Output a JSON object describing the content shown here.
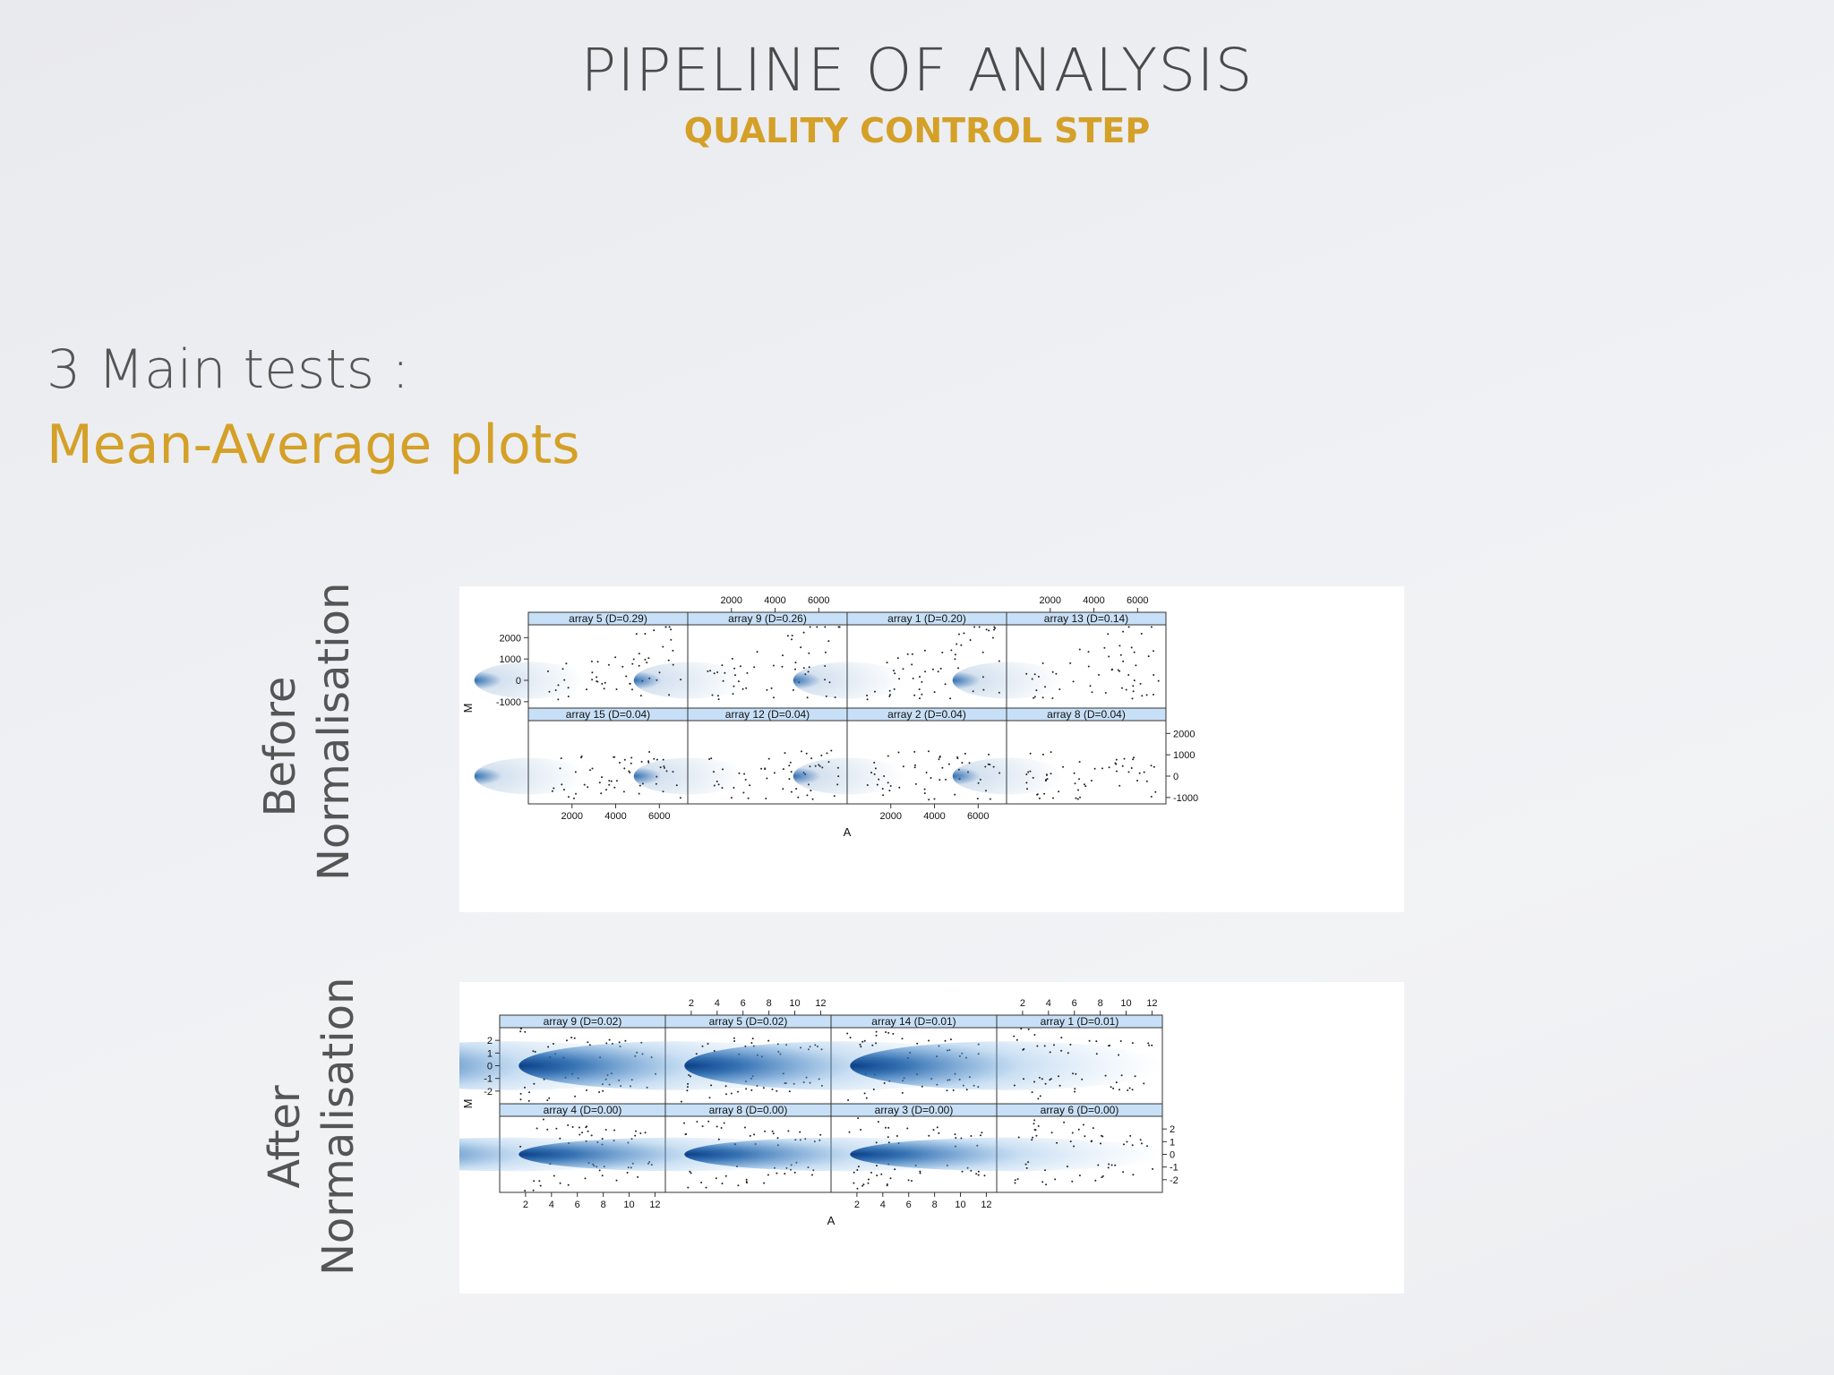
{
  "slide": {
    "title": "PIPELINE OF ANALYSIS",
    "subtitle": "QUALITY CONTROL STEP",
    "heading_line1": "3 Main tests :",
    "heading_line2": "Mean-Average plots"
  },
  "labels": {
    "before_line1": "Before",
    "before_line2": "Normalisation",
    "after_line1": "After",
    "after_line2": "Normalisation"
  },
  "chart_data": [
    {
      "type": "scatter",
      "title": "",
      "xlabel": "A",
      "ylabel": "M",
      "xlim": [
        0,
        7300
      ],
      "ylim": [
        -1300,
        2600
      ],
      "x_ticks": [
        "2000",
        "4000",
        "6000"
      ],
      "y_ticks": [
        "-1000",
        "0",
        "1000",
        "2000"
      ],
      "panels": [
        {
          "label": "array 5 (D=0.29)"
        },
        {
          "label": "array 9 (D=0.26)"
        },
        {
          "label": "array 1 (D=0.20)"
        },
        {
          "label": "array 13 (D=0.14)"
        },
        {
          "label": "array 15 (D=0.04)"
        },
        {
          "label": "array 12 (D=0.04)"
        },
        {
          "label": "array 2 (D=0.04)"
        },
        {
          "label": "array 8 (D=0.04)"
        }
      ]
    },
    {
      "type": "scatter",
      "title": "",
      "xlabel": "A",
      "ylabel": "M",
      "xlim": [
        0,
        12.8
      ],
      "ylim": [
        -3,
        3
      ],
      "x_ticks": [
        "2",
        "4",
        "6",
        "8",
        "10",
        "12"
      ],
      "y_ticks": [
        "-2",
        "-1",
        "0",
        "1",
        "2"
      ],
      "panels": [
        {
          "label": "array 9 (D=0.02)"
        },
        {
          "label": "array 5 (D=0.02)"
        },
        {
          "label": "array 14 (D=0.01)"
        },
        {
          "label": "array 1 (D=0.01)"
        },
        {
          "label": "array 4 (D=0.00)"
        },
        {
          "label": "array 8 (D=0.00)"
        },
        {
          "label": "array 3 (D=0.00)"
        },
        {
          "label": "array 6 (D=0.00)"
        }
      ]
    }
  ],
  "colors": {
    "accent": "#d4a028",
    "strip": "#c7e0f7",
    "density": "#1a5ea8"
  }
}
